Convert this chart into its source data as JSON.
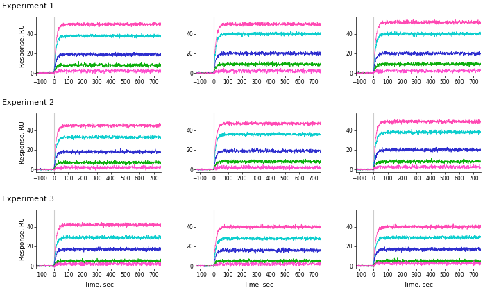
{
  "row_labels": [
    "Experiment 1",
    "Experiment 2",
    "Experiment 3"
  ],
  "x_ticks": [
    -100,
    0,
    100,
    200,
    300,
    400,
    500,
    600,
    700
  ],
  "y_ticks": [
    0,
    20,
    40
  ],
  "xlabel": "Time, sec",
  "ylabel": "Response, RU",
  "curve_colors": [
    "#FF40B0",
    "#00CCCC",
    "#2222CC",
    "#00AA00",
    "#FF44CC"
  ],
  "plateaus": {
    "0_0": [
      50,
      38,
      19,
      8,
      2.0
    ],
    "0_1": [
      50,
      40,
      20,
      9,
      2.0
    ],
    "0_2": [
      52,
      40,
      20,
      9,
      2.0
    ],
    "1_0": [
      45,
      33,
      18,
      7,
      2.0
    ],
    "1_1": [
      47,
      36,
      19,
      8,
      2.0
    ],
    "1_2": [
      49,
      38,
      20,
      8,
      2.5
    ],
    "2_0": [
      42,
      29,
      17,
      5,
      2.0
    ],
    "2_1": [
      40,
      28,
      16,
      5,
      2.0
    ],
    "2_2": [
      40,
      29,
      17,
      5,
      2.5
    ]
  },
  "k_on": 0.07,
  "noise_amp": 0.9,
  "xlim": [
    -125,
    750
  ],
  "ylim": [
    -3,
    58
  ],
  "vline_color": "#CCCCCC",
  "fig_bg": "#FFFFFF",
  "row_label_fontsize": 8,
  "axis_label_fontsize": 6.5,
  "tick_fontsize": 5.5,
  "linewidth": 0.55
}
